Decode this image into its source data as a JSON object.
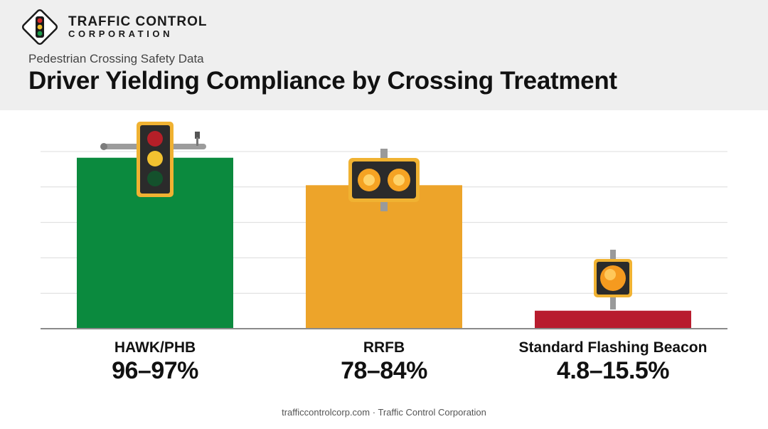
{
  "brand": {
    "line1": "TRAFFIC CONTROL",
    "line2": "CORPORATION"
  },
  "header": {
    "subtitle": "Pedestrian Crossing Safety Data",
    "title": "Driver Yielding Compliance by Crossing Treatment"
  },
  "chart_data": {
    "type": "bar",
    "categories": [
      "HAWK/PHB",
      "RRFB",
      "Standard Flashing Beacon"
    ],
    "value_labels": [
      "96–97%",
      "78–84%",
      "4.8–15.5%"
    ],
    "values": [
      96.5,
      81,
      10.15
    ],
    "ranges": [
      [
        96,
        97
      ],
      [
        78,
        84
      ],
      [
        4.8,
        15.5
      ]
    ],
    "unit": "%",
    "ylim": [
      0,
      100
    ],
    "grid": true,
    "colors": [
      "#0b8a3e",
      "#eda42a",
      "#b81c2e"
    ],
    "icons": [
      "pedestrian-hybrid-beacon-icon",
      "rrfb-beacon-icon",
      "flashing-beacon-icon"
    ]
  },
  "footer": {
    "text": "trafficcontrolcorp.com · Traffic Control Corporation"
  }
}
